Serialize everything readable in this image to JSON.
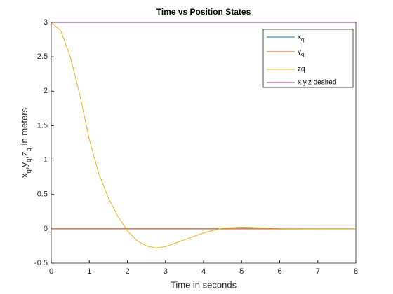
{
  "chart_data": {
    "type": "line",
    "title": "Time vs Position States",
    "xlabel": "Time in seconds",
    "ylabel": "x_q,y_q,z_q  in meters",
    "x": [
      0,
      0.25,
      0.5,
      0.75,
      1,
      1.25,
      1.5,
      1.75,
      2,
      2.25,
      2.5,
      2.75,
      3,
      3.5,
      4,
      4.5,
      5,
      5.5,
      6,
      7,
      8
    ],
    "series": [
      {
        "name": "x_q",
        "color": "#0072BD",
        "values": [
          0,
          0,
          0,
          0,
          0,
          0,
          0,
          0,
          0,
          0,
          0,
          0,
          0,
          0,
          0,
          0,
          0,
          0,
          0,
          0,
          0
        ]
      },
      {
        "name": "y_q",
        "color": "#D95319",
        "values": [
          0,
          0,
          0,
          0,
          0,
          0,
          0,
          0,
          0,
          0,
          0,
          0,
          0,
          0,
          0,
          0,
          0,
          0,
          0,
          0,
          0
        ]
      },
      {
        "name": "zq",
        "color": "#EDB120",
        "values": [
          3,
          2.88,
          2.5,
          1.95,
          1.3,
          0.8,
          0.45,
          0.18,
          -0.03,
          -0.17,
          -0.25,
          -0.28,
          -0.26,
          -0.16,
          -0.06,
          0.01,
          0.025,
          0.015,
          0.004,
          0,
          0
        ]
      },
      {
        "name": "x,y,z desired",
        "color": "#7E2F8E",
        "values": [
          3,
          3,
          3,
          3,
          3,
          3,
          3,
          3,
          3,
          3,
          3,
          3,
          3,
          3,
          3,
          3,
          3,
          3,
          3,
          3,
          3
        ]
      }
    ],
    "xlim": [
      0,
      8
    ],
    "xticks": [
      0,
      1,
      2,
      3,
      4,
      5,
      6,
      7,
      8
    ],
    "ylim": [
      -0.5,
      3
    ],
    "yticks": [
      -0.5,
      0,
      0.5,
      1,
      1.5,
      2,
      2.5,
      3
    ],
    "legend": "northeast"
  }
}
